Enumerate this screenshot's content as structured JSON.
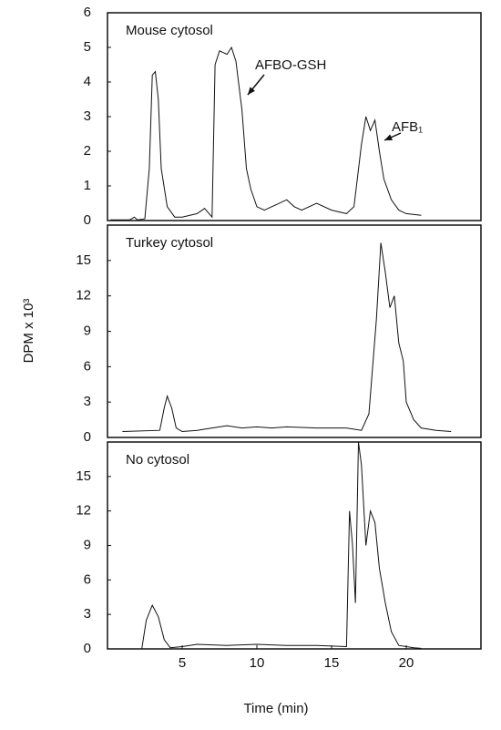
{
  "chart_data": [
    {
      "type": "line",
      "title": "Mouse cytosol",
      "annotations": [
        "AFBO-GSH",
        "AFB₁"
      ],
      "color": "#111111",
      "x": [
        0.2,
        1.5,
        1.8,
        2.0,
        2.5,
        2.8,
        3.0,
        3.2,
        3.4,
        3.6,
        4.0,
        4.5,
        5,
        6,
        6.5,
        7.0,
        7.2,
        7.5,
        8,
        8.3,
        8.6,
        9,
        9.3,
        9.6,
        10,
        10.5,
        11,
        12,
        12.5,
        13,
        14,
        15,
        16,
        16.5,
        17,
        17.3,
        17.6,
        17.9,
        18.2,
        18.5,
        19,
        19.5,
        20,
        21
      ],
      "values": [
        0.02,
        0.02,
        0.1,
        0.02,
        0.05,
        1.5,
        4.2,
        4.3,
        3.5,
        1.5,
        0.4,
        0.1,
        0.1,
        0.2,
        0.35,
        0.1,
        4.5,
        4.9,
        4.8,
        5.0,
        4.6,
        3.2,
        1.5,
        0.9,
        0.4,
        0.3,
        0.4,
        0.6,
        0.4,
        0.3,
        0.5,
        0.3,
        0.2,
        0.4,
        2.2,
        3.0,
        2.6,
        2.9,
        2.0,
        1.2,
        0.6,
        0.3,
        0.2,
        0.15
      ],
      "xlim": [
        0,
        25
      ],
      "ylim": [
        0,
        6
      ],
      "yticks": [
        0,
        1,
        2,
        3,
        4,
        5,
        6
      ]
    },
    {
      "type": "line",
      "title": "Turkey cytosol",
      "y_label": "DPM x 10³",
      "color": "#111111",
      "x": [
        1,
        3.5,
        3.8,
        4,
        4.3,
        4.6,
        5,
        6,
        7,
        8,
        9,
        10,
        11,
        12,
        14,
        16,
        17,
        17.5,
        18,
        18.3,
        18.6,
        18.9,
        19.2,
        19.5,
        19.8,
        20,
        20.5,
        21,
        22,
        23
      ],
      "values": [
        0.5,
        0.6,
        2.5,
        3.5,
        2.5,
        0.8,
        0.5,
        0.6,
        0.8,
        1.0,
        0.8,
        0.9,
        0.8,
        0.9,
        0.8,
        0.8,
        0.6,
        2,
        10,
        16.5,
        14,
        11,
        12,
        8,
        6.5,
        3,
        1.5,
        0.8,
        0.6,
        0.5
      ],
      "xlim": [
        0,
        25
      ],
      "ylim": [
        0,
        18
      ],
      "yticks": [
        0,
        3,
        6,
        9,
        12,
        15
      ]
    },
    {
      "type": "line",
      "title": "No cytosol",
      "x_label": "Time (min)",
      "color": "#111111",
      "x": [
        2.3,
        2.6,
        3,
        3.4,
        3.8,
        4.2,
        5,
        6,
        8,
        10,
        12,
        14,
        16,
        16.2,
        16.4,
        16.6,
        16.8,
        17.0,
        17.3,
        17.6,
        17.9,
        18.2,
        18.6,
        19,
        19.5,
        20.5,
        21
      ],
      "values": [
        0.02,
        2.5,
        3.8,
        2.8,
        0.8,
        0.1,
        0.2,
        0.4,
        0.3,
        0.4,
        0.3,
        0.3,
        0.2,
        12,
        9,
        4,
        18,
        16,
        9,
        12,
        11,
        7,
        4,
        1.5,
        0.3,
        0.1,
        0.05
      ],
      "xlim": [
        0,
        25
      ],
      "ylim": [
        0,
        18
      ],
      "yticks": [
        0,
        3,
        6,
        9,
        12,
        15
      ],
      "xticks": [
        5,
        10,
        15,
        20
      ]
    }
  ]
}
